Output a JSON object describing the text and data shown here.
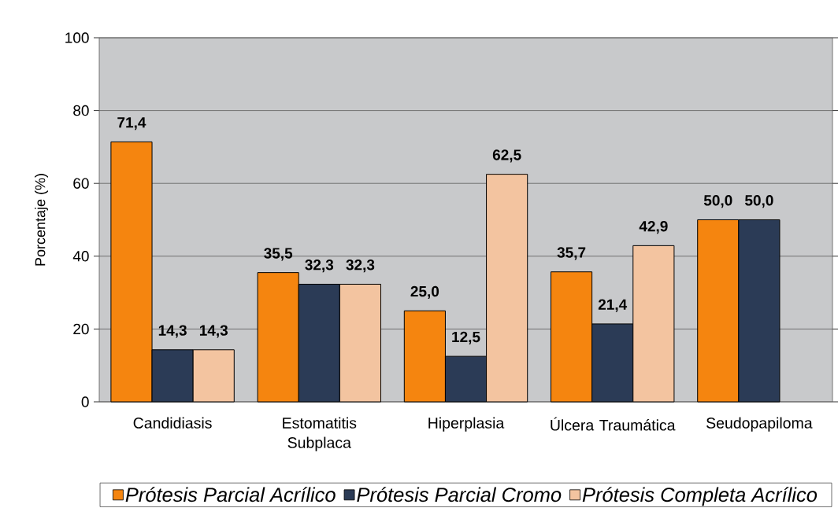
{
  "chart_data": {
    "type": "bar",
    "ylabel": "Porcentaje (%)",
    "categories": [
      "Candidiasis",
      "Estomatitis Subplaca",
      "Hiperplasia",
      "Úlcera Traumática",
      "Seudopapiloma"
    ],
    "series": [
      {
        "name": "Prótesis Parcial Acrílico",
        "color": "#f5850f",
        "values": [
          71.4,
          35.5,
          25.0,
          35.7,
          50.0
        ],
        "value_labels": [
          "71,4",
          "35,5",
          "25,0",
          "35,7",
          "50,0"
        ]
      },
      {
        "name": "Prótesis Parcial Cromo",
        "color": "#2b3b56",
        "values": [
          14.3,
          32.3,
          12.5,
          21.4,
          50.0
        ],
        "value_labels": [
          "14,3",
          "32,3",
          "12,5",
          "21,4",
          "50,0"
        ]
      },
      {
        "name": "Prótesis Completa Acrílico",
        "color": "#f3c4a0",
        "values": [
          14.3,
          32.3,
          62.5,
          42.9,
          null
        ],
        "value_labels": [
          "14,3",
          "32,3",
          "62,5",
          "42,9",
          null
        ]
      }
    ],
    "ylim": [
      0,
      100
    ],
    "yticks": [
      0,
      20,
      40,
      60,
      80,
      100
    ],
    "grid": "y",
    "legend": "bottom"
  }
}
